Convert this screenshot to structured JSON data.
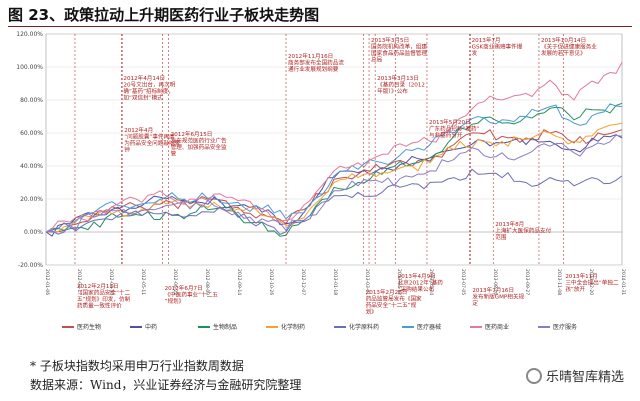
{
  "title": "图 23、政策拉动上升期医药行业子板块走势图",
  "note": "* 子板块指数均采用申万行业指数周数据",
  "source": "数据来源：Wind，兴业证券经济与金融研究院整理",
  "watermark": "乐晴智库精选",
  "chart_data": {
    "type": "line",
    "ylim": [
      -20,
      120
    ],
    "y_ticks": [
      "-20.00%",
      "0.00%",
      "20.00%",
      "40.00%",
      "60.00%",
      "80.00%",
      "100.00%",
      "120.00%"
    ],
    "x_range": [
      "2012-01-06",
      "2014-01-31"
    ],
    "x_ticks": [
      "2012-01-06",
      "2012-02-17",
      "2012-03-30",
      "2012-05-11",
      "2012-06-22",
      "2012-08-03",
      "2012-09-14",
      "2012-10-26",
      "2012-12-07",
      "2013-01-18",
      "2013-03-01",
      "2013-04-12",
      "2013-05-24",
      "2013-07-05",
      "2013-08-16",
      "2013-09-27",
      "2013-11-08",
      "2013-12-20",
      "2014-01-31"
    ],
    "x": [
      "2012-01",
      "2012-02",
      "2012-03",
      "2012-04",
      "2012-05",
      "2012-06",
      "2012-07",
      "2012-08",
      "2012-09",
      "2012-10",
      "2012-11",
      "2012-12",
      "2013-01",
      "2013-02",
      "2013-03",
      "2013-04",
      "2013-05",
      "2013-06",
      "2013-07",
      "2013-08",
      "2013-09",
      "2013-10",
      "2013-11",
      "2013-12",
      "2014-01"
    ],
    "series": [
      {
        "name": "医药生物",
        "color": "#c0504d",
        "values": [
          0,
          4,
          10,
          14,
          15,
          19,
          17,
          20,
          15,
          11,
          5,
          16,
          32,
          35,
          38,
          42,
          45,
          53,
          60,
          58,
          57,
          60,
          54,
          60,
          62
        ]
      },
      {
        "name": "中药",
        "color": "#4f4fa8",
        "values": [
          0,
          5,
          11,
          15,
          16,
          20,
          18,
          21,
          16,
          12,
          5,
          17,
          33,
          36,
          39,
          42,
          43,
          50,
          56,
          54,
          53,
          55,
          50,
          55,
          57
        ]
      },
      {
        "name": "生物制品",
        "color": "#1f8f5f",
        "values": [
          0,
          2,
          6,
          9,
          10,
          12,
          11,
          14,
          10,
          6,
          -2,
          10,
          27,
          30,
          35,
          40,
          45,
          58,
          66,
          66,
          70,
          75,
          68,
          74,
          78
        ]
      },
      {
        "name": "化学制药",
        "color": "#f2a230",
        "values": [
          0,
          4,
          9,
          13,
          14,
          17,
          15,
          18,
          14,
          10,
          4,
          14,
          30,
          33,
          36,
          40,
          42,
          50,
          56,
          55,
          56,
          60,
          55,
          62,
          66
        ]
      },
      {
        "name": "化学原料药",
        "color": "#6a6fb3",
        "values": [
          0,
          3,
          7,
          10,
          10,
          12,
          10,
          12,
          9,
          6,
          0,
          8,
          22,
          24,
          24,
          28,
          30,
          33,
          35,
          33,
          30,
          33,
          28,
          32,
          34
        ]
      },
      {
        "name": "医疗器械",
        "color": "#4a9bd6",
        "values": [
          0,
          5,
          12,
          16,
          17,
          21,
          18,
          22,
          18,
          14,
          8,
          17,
          34,
          38,
          42,
          50,
          53,
          60,
          70,
          68,
          70,
          76,
          66,
          72,
          76
        ]
      },
      {
        "name": "医药商业",
        "color": "#e07b9b",
        "values": [
          0,
          6,
          12,
          17,
          18,
          22,
          20,
          23,
          19,
          14,
          7,
          19,
          37,
          42,
          47,
          52,
          55,
          66,
          78,
          80,
          84,
          92,
          80,
          90,
          103
        ]
      },
      {
        "name": "医疗服务",
        "color": "#8a7cc8",
        "values": [
          0,
          4,
          9,
          13,
          13,
          16,
          14,
          16,
          12,
          8,
          1,
          10,
          25,
          28,
          30,
          34,
          37,
          44,
          50,
          48,
          47,
          52,
          48,
          54,
          58
        ]
      }
    ]
  },
  "annotations": [
    {
      "date": "2012-02-13",
      "text": "2012年2月13日\n《国家药品安全“十二五”规划》印发，仿制药质量一致性评价"
    },
    {
      "date": "2012-04-14",
      "text": "2012年4月14日\n20号文出台，再次明确“基药”招标制度，加“双信封”模式"
    },
    {
      "date": "2012-04",
      "text": "2012年4月\n“问题胶囊”事件再度为药品安全问题敲响警钟"
    },
    {
      "date": "2012-06-15",
      "text": "2012年6月15日\n发布规范医药行业广告管理、加强药品安全监管"
    },
    {
      "date": "2012-06-07",
      "text": "2012年6月7日\n《中医药事业“十二五”规划》"
    },
    {
      "date": "2012-11-16",
      "text": "2012年11月16日\n商务部发布全国药品流通行业发展规划纲要"
    },
    {
      "date": "2013-02-26",
      "text": "2013年2月26日\n药品监管局发布《国家药品安全“十二五”规划》"
    },
    {
      "date": "2013-03-05",
      "text": "2013年3月5日\n国务院机构改革，组建国家食品药品监督管理总局"
    },
    {
      "date": "2013-03-13",
      "text": "2013年3月13日\n《基药目录（2012年版）》公布"
    },
    {
      "date": "2013-04-09",
      "text": "2013年4月9日\n北京2012年“基药”采购结果公布"
    },
    {
      "date": "2013-05-20",
      "text": "2013年5月20日\n广东药品招标“基药”与非基药分开"
    },
    {
      "date": "2013-07",
      "text": "2013年7月\nGSK商业贿赂事件爆发"
    },
    {
      "date": "2013-07-16",
      "text": "2013年7月16日\n发布新版GMP相关规定"
    },
    {
      "date": "2013-08",
      "text": "2013年8月\n上海扩大医保药品支付范围"
    },
    {
      "date": "2013-10-14",
      "text": "2013年10月14日\n《关于促进健康服务业发展的若干意见》"
    },
    {
      "date": "2013-11",
      "text": "2013年11月\n三中全会提出“单独二孩”放开"
    }
  ]
}
